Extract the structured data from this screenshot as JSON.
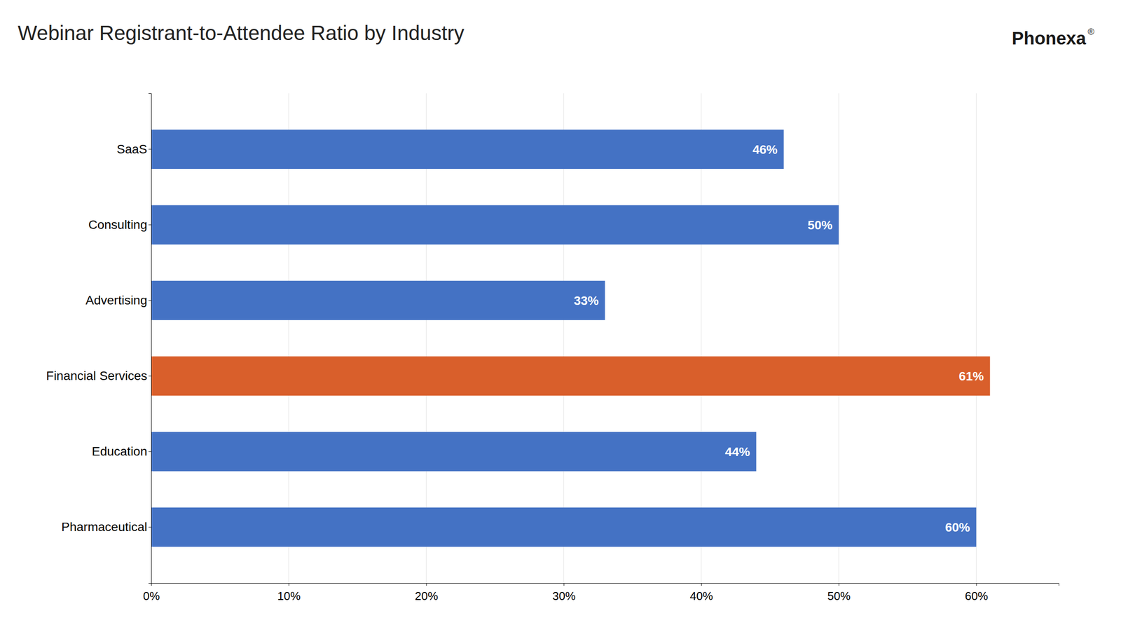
{
  "chart_data": {
    "type": "bar",
    "orientation": "horizontal",
    "title": "Webinar Registrant-to-Attendee Ratio by Industry",
    "annotations": [
      "Phonexa",
      "®"
    ],
    "categories": [
      "Pharmaceutical",
      "Education",
      "Financial Services",
      "Advertising",
      "Consulting",
      "SaaS"
    ],
    "values": [
      60,
      44,
      61,
      33,
      50,
      46
    ],
    "value_labels": [
      "60%",
      "44%",
      "61%",
      "33%",
      "50%",
      "46%"
    ],
    "colors": [
      "#4472C4",
      "#4472C4",
      "#D95F2B",
      "#4472C4",
      "#4472C4",
      "#4472C4"
    ],
    "data_labels": true,
    "xlim": [
      0,
      66
    ],
    "xticks": [
      {
        "value": 0,
        "label": "0%"
      },
      {
        "value": 10,
        "label": "10%"
      },
      {
        "value": 20,
        "label": "20%"
      },
      {
        "value": 30,
        "label": "30%"
      },
      {
        "value": 40,
        "label": "40%"
      },
      {
        "value": 50,
        "label": "50%"
      },
      {
        "value": 60,
        "label": "60%"
      }
    ],
    "grid": true
  }
}
